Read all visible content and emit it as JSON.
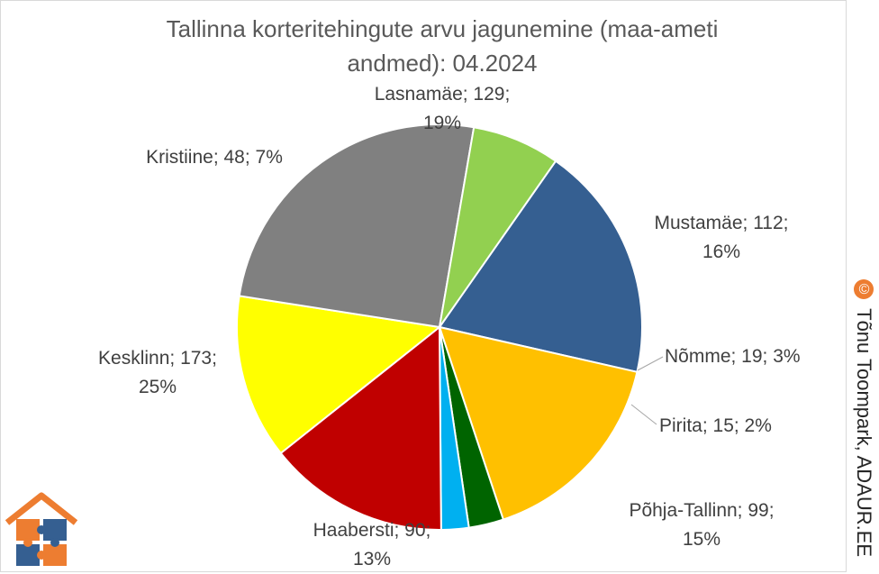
{
  "chart_data": {
    "type": "pie",
    "title": "Tallinna korteritehingute arvu jagunemine (maa-ameti andmed): 04.2024",
    "title_lines": [
      "Tallinna korteritehingute arvu jagunemine (maa-ameti",
      "andmed): 04.2024"
    ],
    "slices": [
      {
        "name": "Lasnamäe",
        "value": 129,
        "percent": 19,
        "color": "#355f91",
        "label_lines": [
          "Lasnamäe; 129;",
          "19%"
        ]
      },
      {
        "name": "Mustamäe",
        "value": 112,
        "percent": 16,
        "color": "#ffc000",
        "label_lines": [
          "Mustamäe; 112;",
          "16%"
        ]
      },
      {
        "name": "Nõmme",
        "value": 19,
        "percent": 3,
        "color": "#006400",
        "label_lines": [
          "Nõmme; 19; 3%"
        ]
      },
      {
        "name": "Pirita",
        "value": 15,
        "percent": 2,
        "color": "#00b0f0",
        "label_lines": [
          "Pirita; 15; 2%"
        ]
      },
      {
        "name": "Põhja-Tallinn",
        "value": 99,
        "percent": 15,
        "color": "#c00000",
        "label_lines": [
          "Põhja-Tallinn; 99;",
          "15%"
        ]
      },
      {
        "name": "Haabersti",
        "value": 90,
        "percent": 13,
        "color": "#ffff00",
        "label_lines": [
          "Haabersti; 90;",
          "13%"
        ]
      },
      {
        "name": "Kesklinn",
        "value": 173,
        "percent": 25,
        "color": "#808080",
        "label_lines": [
          "Kesklinn; 173;",
          "25%"
        ]
      },
      {
        "name": "Kristiine",
        "value": 48,
        "percent": 7,
        "color": "#92d050",
        "label_lines": [
          "Kristiine; 48; 7%"
        ]
      }
    ]
  },
  "copyright": {
    "symbol": "©",
    "text": "Tõnu Toompark, ADAUR.EE"
  }
}
